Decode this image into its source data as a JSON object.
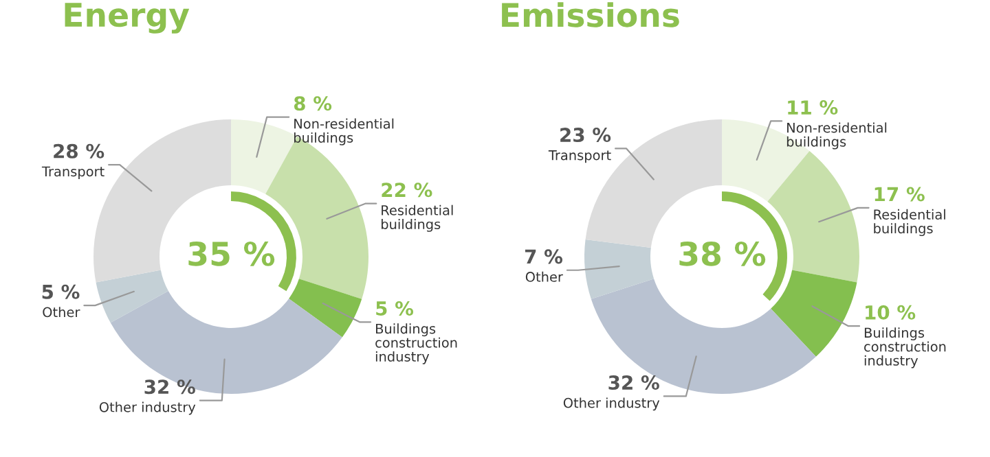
{
  "chart_data": [
    {
      "type": "donut",
      "title": "Energy",
      "categories": [
        "Non-residential\nbuildings",
        "Residential\nbuildings",
        "Buildings\nconstruction\nindustry",
        "Other industry",
        "Other",
        "Transport"
      ],
      "values": [
        8,
        22,
        5,
        32,
        5,
        28
      ],
      "value_labels": [
        "8 %",
        "22 %",
        "5 %",
        "32 %",
        "5 %",
        "28 %"
      ],
      "colors": [
        "#edf4e3",
        "#c8e0ab",
        "#84bf4f",
        "#b9c2d1",
        "#c4d0d6",
        "#dddddd"
      ],
      "annotations": [
        "35 %"
      ]
    },
    {
      "type": "donut",
      "title": "Emissions",
      "categories": [
        "Non-residential\nbuildings",
        "Residential\nbuildings",
        "Buildings\nconstruction\nindustry",
        "Other industry",
        "Other",
        "Transport"
      ],
      "values": [
        11,
        17,
        10,
        32,
        7,
        23
      ],
      "value_labels": [
        "11 %",
        "17 %",
        "10 %",
        "32 %",
        "7 %",
        "23 %"
      ],
      "colors": [
        "#edf4e3",
        "#c8e0ab",
        "#84bf4f",
        "#b9c2d1",
        "#c4d0d6",
        "#dddddd"
      ],
      "annotations": [
        "38 %"
      ]
    }
  ]
}
